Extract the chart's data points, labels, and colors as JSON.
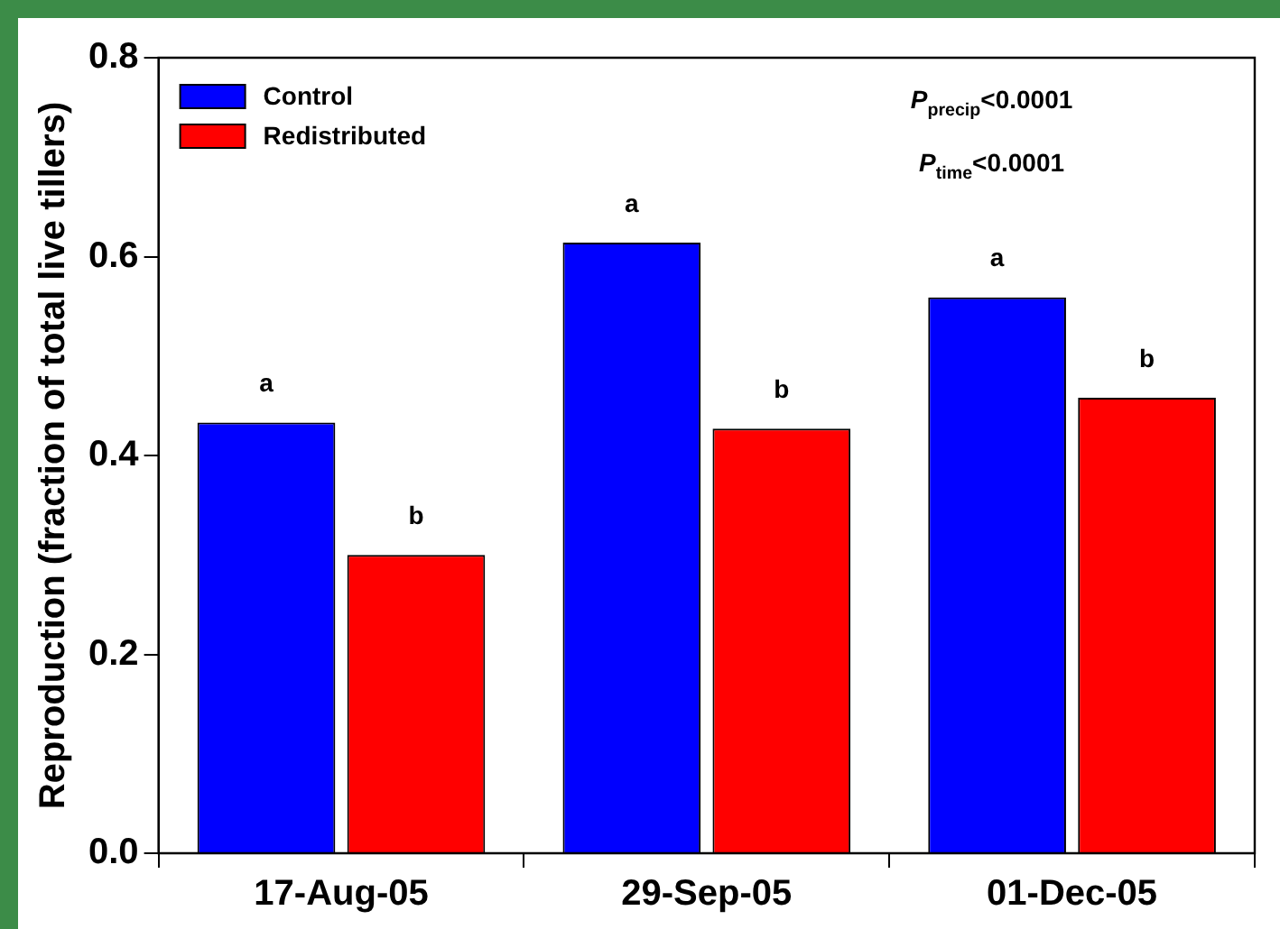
{
  "chart_data": {
    "type": "bar",
    "ylabel": "Reproduction (fraction of total live tillers)",
    "categories": [
      "17-Aug-05",
      "29-Sep-05",
      "01-Dec-05"
    ],
    "series": [
      {
        "name": "Control",
        "color": "#0000ff",
        "values": [
          0.433,
          0.614,
          0.559
        ],
        "value_labels": [
          "a",
          "a",
          "a"
        ]
      },
      {
        "name": "Redistributed",
        "color": "#ff0000",
        "values": [
          0.3,
          0.427,
          0.458
        ],
        "value_labels": [
          "b",
          "b",
          "b"
        ]
      }
    ],
    "ylim": [
      0,
      0.8
    ],
    "yticks": [
      {
        "value": 0,
        "label": "0.0"
      },
      {
        "value": 0.2,
        "label": "0.2"
      },
      {
        "value": 0.4,
        "label": "0.4"
      },
      {
        "value": 0.6,
        "label": "0.6"
      },
      {
        "value": 0.8,
        "label": "0.8"
      }
    ],
    "annotations": [
      "P$_{precip}$<0.0001",
      "P$_{time}$<0.0001"
    ],
    "legend": "top left",
    "grid": false
  }
}
